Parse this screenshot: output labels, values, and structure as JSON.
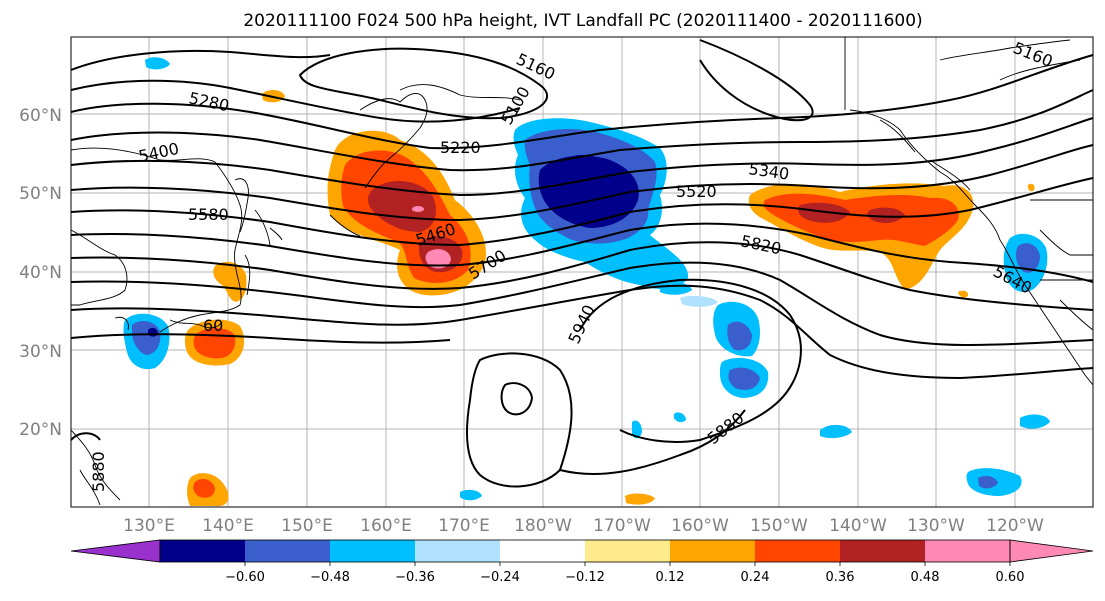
{
  "figure": {
    "title": "2020111100 F024 500 hPa height, IVT Landfall PC (2020111400 - 2020111600)"
  },
  "map": {
    "lat_ticks": [
      "20°N",
      "30°N",
      "40°N",
      "50°N",
      "60°N"
    ],
    "lon_ticks": [
      "130°E",
      "140°E",
      "150°E",
      "160°E",
      "170°E",
      "180°W",
      "170°W",
      "160°W",
      "150°W",
      "140°W",
      "130°W",
      "120°W"
    ],
    "height_contour_labels": [
      "5160",
      "5160",
      "5100",
      "5220",
      "5280",
      "5340",
      "5400",
      "5460",
      "5520",
      "5580",
      "5640",
      "5700",
      "5820",
      "5880",
      "5940",
      "5880",
      "60"
    ]
  },
  "colorbar": {
    "ticks": [
      "−0.60",
      "−0.48",
      "−0.36",
      "−0.24",
      "−0.12",
      "0.12",
      "0.24",
      "0.36",
      "0.48",
      "0.60"
    ],
    "colors": [
      "#9932cc",
      "#00008b",
      "#3a5fcd",
      "#00bfff",
      "#b0e2ff",
      "#ffffff",
      "#ffeb8c",
      "#ffa500",
      "#ff4500",
      "#b22222",
      "#ff88b4",
      "#ff88b4"
    ]
  }
}
